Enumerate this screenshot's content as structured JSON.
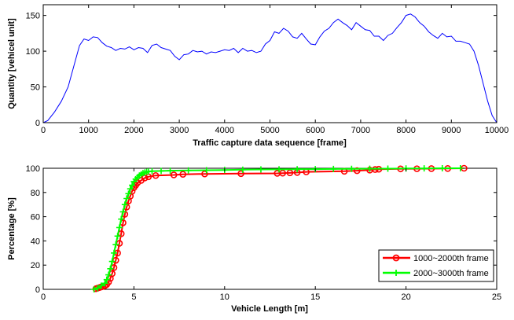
{
  "chart_data": [
    {
      "type": "line",
      "title": "",
      "xlabel": "Traffic capture data sequence [frame]",
      "ylabel": "Quantity [vehicel unit]",
      "xlim": [
        0,
        10000
      ],
      "ylim": [
        0,
        165
      ],
      "xticks": [
        0,
        1000,
        2000,
        3000,
        4000,
        5000,
        6000,
        7000,
        8000,
        9000,
        10000
      ],
      "yticks": [
        0,
        50,
        100,
        150
      ],
      "grid": false,
      "colors": {
        "line": "#0000ff"
      },
      "series": [
        {
          "x": [
            0,
            100,
            250,
            400,
            550,
            700,
            800,
            900,
            1000,
            1100,
            1200,
            1300,
            1400,
            1500,
            1600,
            1700,
            1800,
            1900,
            2000,
            2100,
            2200,
            2300,
            2400,
            2500,
            2600,
            2700,
            2800,
            2900,
            3000,
            3100,
            3200,
            3300,
            3400,
            3500,
            3600,
            3700,
            3800,
            3900,
            4000,
            4100,
            4200,
            4300,
            4400,
            4500,
            4600,
            4700,
            4800,
            4900,
            5000,
            5100,
            5200,
            5300,
            5400,
            5500,
            5600,
            5700,
            5800,
            5900,
            6000,
            6100,
            6200,
            6300,
            6400,
            6500,
            6600,
            6700,
            6800,
            6900,
            7000,
            7100,
            7200,
            7300,
            7400,
            7500,
            7600,
            7700,
            7800,
            7900,
            8000,
            8100,
            8200,
            8300,
            8400,
            8500,
            8600,
            8700,
            8800,
            8900,
            9000,
            9100,
            9200,
            9300,
            9400,
            9500,
            9600,
            9700,
            9800,
            9900,
            10000
          ],
          "y": [
            0,
            3,
            15,
            30,
            50,
            85,
            108,
            117,
            115,
            120,
            119,
            112,
            107,
            105,
            101,
            104,
            103,
            106,
            102,
            105,
            104,
            98,
            108,
            110,
            105,
            103,
            101,
            93,
            88,
            95,
            96,
            101,
            99,
            100,
            96,
            99,
            98,
            100,
            102,
            101,
            104,
            98,
            104,
            100,
            101,
            98,
            100,
            110,
            115,
            127,
            125,
            132,
            128,
            120,
            118,
            125,
            117,
            110,
            109,
            120,
            128,
            132,
            140,
            145,
            140,
            136,
            130,
            140,
            135,
            130,
            129,
            121,
            121,
            115,
            122,
            125,
            133,
            140,
            150,
            152,
            148,
            140,
            135,
            127,
            122,
            118,
            125,
            120,
            121,
            114,
            114,
            112,
            110,
            100,
            80,
            55,
            30,
            10,
            0
          ]
        }
      ]
    },
    {
      "type": "line",
      "title": "",
      "xlabel": "Vehicle Length [m]",
      "ylabel": "Percentage [%]",
      "xlim": [
        0,
        25
      ],
      "ylim": [
        0,
        100
      ],
      "xticks": [
        0,
        5,
        10,
        15,
        20,
        25
      ],
      "yticks": [
        0,
        20,
        40,
        60,
        80,
        100
      ],
      "grid": false,
      "legend": "bottom-right",
      "series": [
        {
          "name": "1000~2000th frame",
          "color": "#ff0000",
          "marker": "circle",
          "x": [
            2.9,
            3.0,
            3.1,
            3.2,
            3.3,
            3.4,
            3.5,
            3.6,
            3.7,
            3.8,
            3.9,
            4.0,
            4.1,
            4.2,
            4.3,
            4.4,
            4.5,
            4.6,
            4.7,
            4.8,
            4.9,
            5.0,
            5.1,
            5.2,
            5.4,
            5.6,
            5.8,
            6.2,
            7.2,
            7.7,
            8.9,
            10.9,
            12.9,
            13.2,
            13.6,
            14.0,
            14.5,
            16.6,
            17.3,
            18.0,
            18.3,
            18.5,
            19.7,
            20.6,
            21.4,
            22.3,
            23.2
          ],
          "y": [
            0.5,
            1,
            1.5,
            2,
            2.5,
            3,
            4,
            6,
            9,
            13,
            18,
            24,
            30,
            38,
            46,
            55,
            62,
            68,
            73,
            77,
            81,
            84,
            86,
            88,
            90,
            92,
            93,
            94,
            94.5,
            95,
            95.3,
            95.6,
            95.8,
            96,
            96.2,
            96.5,
            97,
            97.5,
            98,
            98.5,
            99,
            99.2,
            99.5,
            99.6,
            99.7,
            99.8,
            100
          ]
        },
        {
          "name": "2000~3000th frame",
          "color": "#00ff00",
          "marker": "plus",
          "x": [
            2.8,
            3.0,
            3.2,
            3.4,
            3.5,
            3.6,
            3.7,
            3.8,
            3.9,
            4.0,
            4.1,
            4.2,
            4.3,
            4.4,
            4.5,
            4.6,
            4.7,
            4.8,
            4.9,
            5.0,
            5.1,
            5.2,
            5.3,
            5.4,
            5.5,
            5.6,
            5.7,
            5.8,
            6.0,
            6.5,
            7.0,
            8.0,
            9.0,
            10.0,
            11.0,
            12.0,
            13.0,
            14.0,
            15.0,
            16.0,
            17.0,
            18.0,
            19.0,
            20.0,
            21.0,
            22.0,
            23.0
          ],
          "y": [
            0,
            1,
            3,
            5,
            8,
            12,
            17,
            23,
            30,
            37,
            44,
            51,
            58,
            64,
            70,
            75,
            79,
            83,
            86,
            89,
            91,
            92.5,
            94,
            95,
            96,
            96.5,
            97,
            97.3,
            97.6,
            97.8,
            98,
            98.2,
            98.4,
            98.6,
            98.8,
            99,
            99.1,
            99.2,
            99.3,
            99.4,
            99.5,
            99.6,
            99.7,
            99.8,
            99.9,
            100,
            100
          ]
        }
      ]
    }
  ]
}
